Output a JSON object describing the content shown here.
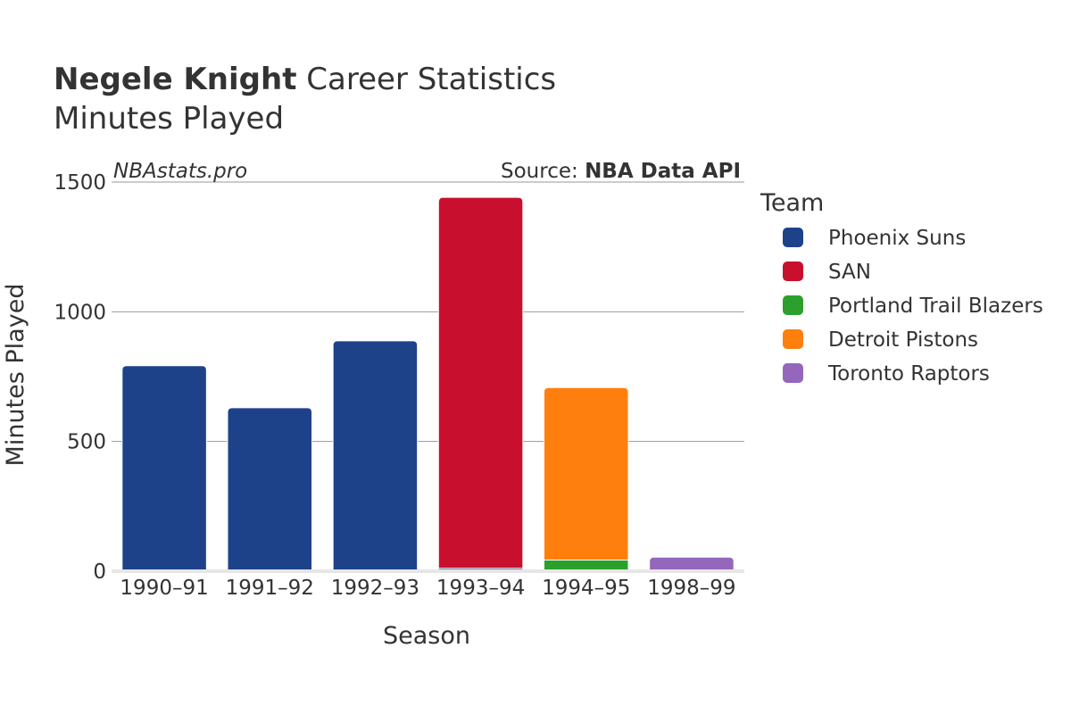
{
  "title": {
    "bold": "Negele Knight",
    "rest": " Career Statistics",
    "subtitle": "Minutes Played"
  },
  "watermark": "NBAstats.pro",
  "source": {
    "prefix": "Source: ",
    "name": "NBA Data API"
  },
  "legend": {
    "title": "Team"
  },
  "colors": {
    "Phoenix Suns": "#1d428a",
    "SAN": "#c8102e",
    "Portland Trail Blazers": "#2ca02c",
    "Detroit Pistons": "#ff7f0e",
    "Toronto Raptors": "#9467bd"
  },
  "chart_data": {
    "type": "bar",
    "stacked": true,
    "xlabel": "Season",
    "ylabel": "Minutes Played",
    "ylim": [
      0,
      1500
    ],
    "yticks": [
      0,
      500,
      1000,
      1500
    ],
    "grid": true,
    "legend_position": "right",
    "categories": [
      "1990–91",
      "1991–92",
      "1992–93",
      "1993–94",
      "1994–95",
      "1998–99"
    ],
    "series": [
      {
        "name": "Phoenix Suns",
        "values": [
          792,
          630,
          888,
          11,
          0,
          0
        ]
      },
      {
        "name": "SAN",
        "values": [
          0,
          0,
          0,
          1430,
          0,
          0
        ]
      },
      {
        "name": "Portland Trail Blazers",
        "values": [
          0,
          0,
          0,
          0,
          43,
          0
        ]
      },
      {
        "name": "Detroit Pistons",
        "values": [
          0,
          0,
          0,
          0,
          665,
          0
        ]
      },
      {
        "name": "Toronto Raptors",
        "values": [
          0,
          0,
          0,
          0,
          0,
          54
        ]
      }
    ]
  }
}
